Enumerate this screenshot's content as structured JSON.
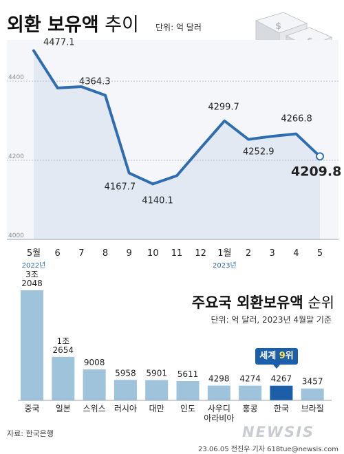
{
  "header": {
    "title_bold": "외환 보유액",
    "title_light": " 추이",
    "unit": "단위: 억 달러"
  },
  "bar_header": {
    "title_bold": "주요국 외환보유액",
    "title_light": " 순위",
    "unit": "단위: 억 달러, 2023년 4월말 기준"
  },
  "badge": {
    "prefix": "세계 ",
    "rank": "9",
    "suffix": "위"
  },
  "footer": {
    "source": "자료: 한국은행",
    "credit": "23.06.05 전진우 기자 618tue@newsis.com",
    "logo": "NEWSIS"
  },
  "colors": {
    "line": "#2e6db0",
    "area": "#e3e9f3",
    "bar": "#9ec3db",
    "bar_highlight": "#1c5ea8",
    "axis_year": "#2e6db0"
  },
  "chart_data": [
    {
      "type": "line",
      "title": "외환 보유액 추이",
      "unit": "단위: 억 달러",
      "x": [
        "5월",
        "6",
        "7",
        "8",
        "9",
        "10",
        "11",
        "12",
        "1월",
        "2",
        "3",
        "4",
        "5"
      ],
      "year_labels": [
        {
          "label": "2022년",
          "at": "5월"
        },
        {
          "label": "2023년",
          "at": "1월"
        }
      ],
      "series": [
        {
          "values": [
            4477.1,
            4382.8,
            4386.1,
            4364.3,
            4167.7,
            4140.1,
            4161.0,
            4231.0,
            4299.7,
            4252.9,
            4260.7,
            4266.8,
            4209.8
          ]
        }
      ],
      "labeled_points": [
        {
          "index": 0,
          "label": "4477.1"
        },
        {
          "index": 3,
          "label": "4364.3"
        },
        {
          "index": 4,
          "label": "4167.7"
        },
        {
          "index": 5,
          "label": "4140.1"
        },
        {
          "index": 8,
          "label": "4299.7"
        },
        {
          "index": 9,
          "label": "4252.9"
        },
        {
          "index": 11,
          "label": "4266.8"
        },
        {
          "index": 12,
          "label": "4209.8"
        }
      ],
      "yticks": [
        "4000",
        "4200",
        "4400"
      ],
      "ylim": [
        4000,
        4500
      ],
      "grid": "horizontal-dashed"
    },
    {
      "type": "bar",
      "title": "주요국 외환보유액 순위",
      "unit": "단위: 억 달러, 2023년 4월말 기준",
      "categories": [
        "중국",
        "일본",
        "스위스",
        "러시아",
        "대만",
        "인도",
        "사우디\n아라비아",
        "홍콩",
        "한국",
        "브라질"
      ],
      "values": [
        32048,
        12654,
        9008,
        5958,
        5901,
        5611,
        4298,
        4274,
        4267,
        3457
      ],
      "value_labels": [
        "3조\n2048",
        "1조\n2654",
        "9008",
        "5958",
        "5901",
        "5611",
        "4298",
        "4274",
        "4267",
        "3457"
      ],
      "highlight": "한국"
    }
  ]
}
